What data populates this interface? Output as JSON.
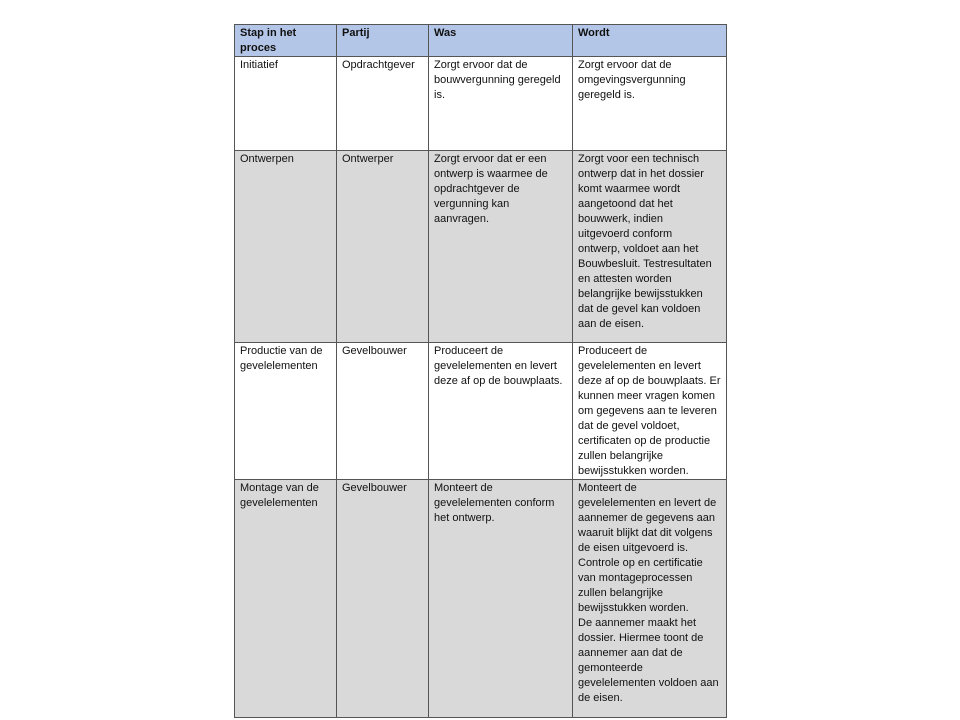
{
  "table": {
    "headers": [
      "Stap in het proces",
      "Partij",
      "Was",
      "Wordt"
    ],
    "rows": [
      {
        "stap": "Initiatief",
        "partij": "Opdrachtgever",
        "was": "Zorgt ervoor dat de\nbouwvergunning geregeld\nis.",
        "wordt": "Zorgt ervoor dat de\nomgevingsvergunning\ngeregeld is."
      },
      {
        "stap": "Ontwerpen",
        "partij": "Ontwerper",
        "was": "Zorgt ervoor dat er een\nontwerp is waarmee de\nopdrachtgever de\nvergunning kan aanvragen.",
        "wordt": "Zorgt voor een technisch\nontwerp dat in het dossier\nkomt waarmee wordt\naangetoond dat het\nbouwwerk, indien\nuitgevoerd conform\nontwerp, voldoet aan het\nBouwbesluit. Testresultaten\nen attesten worden\nbelangrijke bewijsstukken\ndat de gevel kan voldoen\naan de eisen."
      },
      {
        "stap": "Productie van de\ngevelelementen",
        "partij": "Gevelbouwer",
        "was": "Produceert de\ngevelelementen en levert\ndeze af op de bouwplaats.",
        "wordt": "Produceert de\ngevelelementen en levert\ndeze af op de bouwplaats. Er\nkunnen meer vragen komen\nom gegevens aan te leveren\ndat de gevel voldoet,\ncertificaten op de productie\nzullen belangrijke\nbewijsstukken worden."
      },
      {
        "stap": "Montage van de\ngevelelementen",
        "partij": "Gevelbouwer",
        "was": "Monteert de\ngevelelementen conform\nhet ontwerp.",
        "wordt": "Monteert de\ngevelelementen en levert de\naannemer de gegevens aan\nwaaruit blijkt dat dit volgens\nde eisen uitgevoerd is.\nControle op en certificatie\nvan montageprocessen\nzullen belangrijke\nbewijsstukken worden.\nDe aannemer maakt het\ndossier. Hiermee toont de\naannemer aan dat de\ngemonteerde\ngevelelementen voldoen aan\nde eisen."
      }
    ]
  },
  "colors": {
    "header_bg": "#b4c6e7",
    "shaded_row_bg": "#d9d9d9"
  }
}
